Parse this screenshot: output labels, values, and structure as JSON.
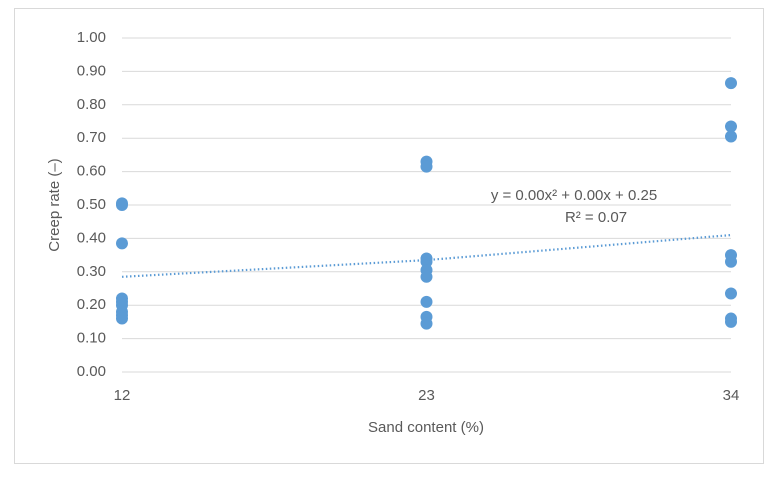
{
  "chart_data": {
    "type": "scatter",
    "x_label": "Sand content (%)",
    "y_label": "Creep rate (–)",
    "x": [
      12,
      12,
      12,
      12,
      12,
      12,
      12,
      12,
      12,
      23,
      23,
      23,
      23,
      23,
      23,
      23,
      23,
      23,
      34,
      34,
      34,
      34,
      34,
      34,
      34,
      34
    ],
    "values": [
      0.505,
      0.5,
      0.385,
      0.22,
      0.21,
      0.2,
      0.18,
      0.17,
      0.16,
      0.63,
      0.615,
      0.34,
      0.33,
      0.305,
      0.285,
      0.21,
      0.165,
      0.145,
      0.865,
      0.735,
      0.705,
      0.35,
      0.33,
      0.235,
      0.16,
      0.15
    ],
    "color": "#5b9bd5",
    "trendline": {
      "x": [
        12,
        23,
        34
      ],
      "values": [
        0.285,
        0.335,
        0.41
      ],
      "color": "#5b9bd5"
    },
    "annotations": [
      "y = 0.00x² + 0.00x + 0.25",
      "R² = 0.07"
    ],
    "xlim": [
      12,
      34
    ],
    "xticks": [
      12,
      23,
      34
    ],
    "ylim": [
      0,
      1
    ],
    "yticks": [
      {
        "value": 0,
        "label": "0.00"
      },
      {
        "value": 0.1,
        "label": "0.10"
      },
      {
        "value": 0.2,
        "label": "0.20"
      },
      {
        "value": 0.3,
        "label": "0.30"
      },
      {
        "value": 0.4,
        "label": "0.40"
      },
      {
        "value": 0.5,
        "label": "0.50"
      },
      {
        "value": 0.6,
        "label": "0.60"
      },
      {
        "value": 0.7,
        "label": "0.70"
      },
      {
        "value": 0.8,
        "label": "0.80"
      },
      {
        "value": 0.9,
        "label": "0.90"
      },
      {
        "value": 1,
        "label": "1.00"
      }
    ],
    "grid": true
  }
}
